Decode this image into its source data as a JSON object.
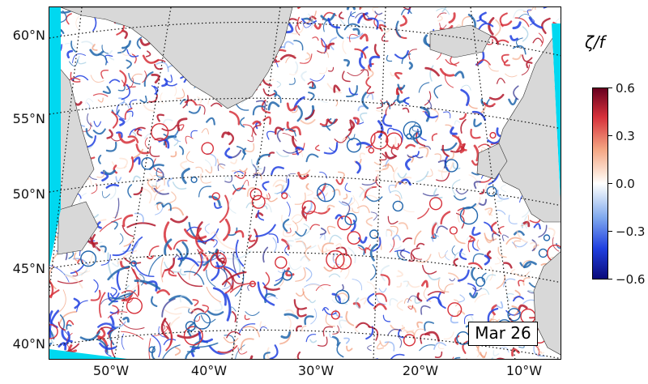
{
  "map": {
    "lat_labels": [
      "60°N",
      "55°N",
      "50°N",
      "45°N",
      "40°N"
    ],
    "lon_labels": [
      "50°W",
      "40°W",
      "30°W",
      "20°W",
      "10°W"
    ],
    "date_label": "Mar 26"
  },
  "colorbar": {
    "title": "ζ/f",
    "tick_labels": [
      "0.6",
      "0.3",
      "0.0",
      "−0.3",
      "−0.6"
    ],
    "range": [
      -0.6,
      0.6
    ],
    "colormap": "RdBu_r",
    "colors": {
      "max": "#67001f",
      "mid": "#ffffff",
      "min": "#0a0a7a"
    }
  },
  "colors": {
    "land": "#d8d8d8",
    "outside_domain": "#00d8f0"
  }
}
